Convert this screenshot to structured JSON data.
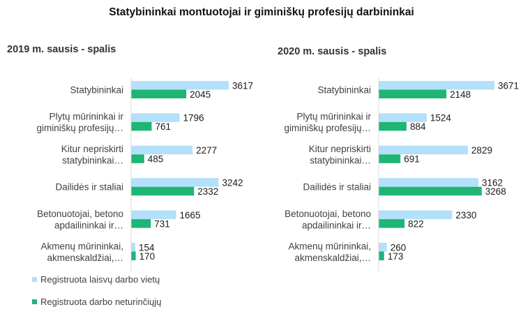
{
  "title": "Statybininkai montuotojai ir giminiškų profesijų darbininkai",
  "legend": [
    {
      "label": "Registruota laisvų darbo vietų",
      "color": "#b3e0fa"
    },
    {
      "label": "Registruota darbo neturinčiųjų",
      "color": "#1fb574"
    }
  ],
  "chart_data": [
    {
      "type": "bar",
      "orientation": "horizontal",
      "title": "2019 m. sausis - spalis",
      "categories": [
        [
          "Statybininkai"
        ],
        [
          "Plytų mūrininkai ir",
          "giminiškų profesijų…"
        ],
        [
          "Kitur nepriskirti",
          "statybininkai…"
        ],
        [
          "Dailidės ir staliai"
        ],
        [
          "Betonuotojai, betono",
          "apdailininkai ir…"
        ],
        [
          "Akmenų mūrininkai,",
          "akmenskaldžiai,…"
        ]
      ],
      "series": [
        {
          "name": "Registruota laisvų darbo vietų",
          "values": [
            3617,
            1796,
            2277,
            3242,
            1665,
            154
          ]
        },
        {
          "name": "Registruota darbo neturinčiųjų",
          "values": [
            2045,
            761,
            485,
            2332,
            731,
            170
          ]
        }
      ],
      "xlim": [
        0,
        4000
      ],
      "grid": false,
      "legend_position": "bottom-left"
    },
    {
      "type": "bar",
      "orientation": "horizontal",
      "title": "2020 m. sausis - spalis",
      "categories": [
        [
          "Statybininkai"
        ],
        [
          "Plytų mūrininkai ir",
          "giminiškų profesijų…"
        ],
        [
          "Kitur nepriskirti",
          "statybininkai…"
        ],
        [
          "Dailidės ir staliai"
        ],
        [
          "Betonuotojai, betono",
          "apdailininkai ir…"
        ],
        [
          "Akmenų mūrininkai,",
          "akmenskaldžiai,…"
        ]
      ],
      "series": [
        {
          "name": "Registruota laisvų darbo vietų",
          "values": [
            3671,
            1524,
            2829,
            3162,
            2330,
            260
          ]
        },
        {
          "name": "Registruota darbo neturinčiųjų",
          "values": [
            2148,
            884,
            691,
            3268,
            822,
            173
          ]
        }
      ],
      "xlim": [
        0,
        4000
      ],
      "grid": false,
      "legend_position": "bottom-left"
    }
  ]
}
